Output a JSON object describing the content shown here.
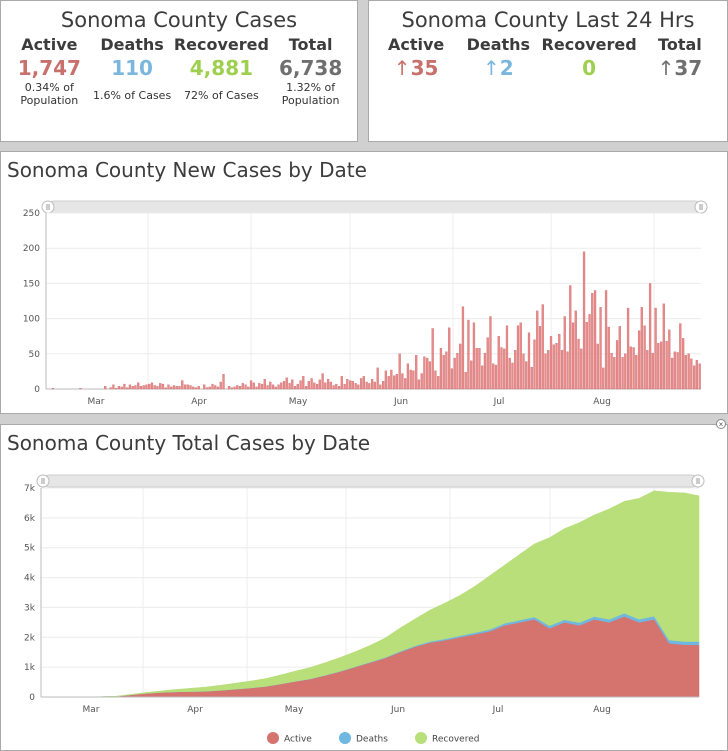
{
  "cases_panel": {
    "title": "Sonoma County Cases",
    "stats": [
      {
        "label": "Active",
        "value": "1,747",
        "note": "0.34% of Population",
        "color": "#c8706c"
      },
      {
        "label": "Deaths",
        "value": "110",
        "note": "1.6% of Cases",
        "color": "#7bb6de"
      },
      {
        "label": "Recovered",
        "value": "4,881",
        "note": "72% of Cases",
        "color": "#9fcf4e"
      },
      {
        "label": "Total",
        "value": "6,738",
        "note": "1.32% of Population",
        "color": "#6f6f6f"
      }
    ]
  },
  "last24_panel": {
    "title": "Sonoma County Last 24 Hrs",
    "stats": [
      {
        "label": "Active",
        "arrow": "↑",
        "value": "35",
        "color": "#c8706c"
      },
      {
        "label": "Deaths",
        "arrow": "↑",
        "value": "2",
        "color": "#7bb6de"
      },
      {
        "label": "Recovered",
        "arrow": "",
        "value": "0",
        "color": "#9fcf4e"
      },
      {
        "label": "Total",
        "arrow": "↑",
        "value": "37",
        "color": "#6f6f6f"
      }
    ]
  },
  "chart_data": [
    {
      "type": "bar",
      "title": "Sonoma County New Cases by Date",
      "xlabel": "",
      "ylabel": "",
      "ylim": [
        0,
        250
      ],
      "y_ticks": [
        "250",
        "200",
        "150",
        "100",
        "50",
        "0"
      ],
      "x_ticks": [
        "Mar",
        "Apr",
        "May",
        "Jun",
        "Jul",
        "Aug"
      ],
      "grid": true,
      "color": "#e8898a",
      "series": [
        {
          "values": [
            0,
            0,
            1,
            0,
            0,
            0,
            0,
            0,
            0,
            0,
            0,
            0,
            1,
            0,
            0,
            0,
            0,
            0,
            0,
            0,
            0,
            4,
            0,
            2,
            6,
            1,
            4,
            3,
            7,
            2,
            6,
            4,
            5,
            9,
            4,
            5,
            6,
            7,
            9,
            5,
            4,
            8,
            7,
            2,
            6,
            3,
            5,
            4,
            4,
            12,
            6,
            6,
            5,
            3,
            2,
            4,
            0,
            6,
            2,
            3,
            7,
            5,
            3,
            10,
            21,
            0,
            4,
            2,
            3,
            5,
            4,
            8,
            6,
            3,
            12,
            9,
            3,
            8,
            7,
            14,
            5,
            10,
            6,
            3,
            6,
            9,
            11,
            16,
            8,
            13,
            4,
            7,
            12,
            18,
            4,
            11,
            15,
            9,
            7,
            13,
            22,
            9,
            14,
            10,
            5,
            7,
            4,
            18,
            7,
            14,
            12,
            11,
            8,
            6,
            15,
            18,
            10,
            8,
            14,
            10,
            30,
            6,
            11,
            26,
            18,
            27,
            19,
            21,
            50,
            22,
            15,
            36,
            27,
            26,
            48,
            13,
            22,
            46,
            44,
            39,
            86,
            26,
            18,
            58,
            48,
            53,
            87,
            29,
            44,
            51,
            64,
            117,
            24,
            98,
            40,
            94,
            58,
            58,
            33,
            51,
            73,
            103,
            36,
            34,
            75,
            59,
            57,
            90,
            44,
            37,
            55,
            90,
            94,
            50,
            39,
            80,
            31,
            70,
            111,
            89,
            120,
            50,
            55,
            75,
            63,
            65,
            78,
            55,
            103,
            53,
            147,
            94,
            111,
            71,
            57,
            195,
            95,
            106,
            136,
            140,
            64,
            116,
            30,
            140,
            88,
            51,
            45,
            69,
            89,
            45,
            50,
            115,
            60,
            59,
            48,
            83,
            116,
            90,
            55,
            150,
            51,
            115,
            65,
            67,
            121,
            68,
            84,
            44,
            53,
            52,
            93,
            72,
            48,
            50,
            43,
            33,
            41,
            36
          ]
        }
      ]
    },
    {
      "type": "area",
      "stacked": true,
      "title": "Sonoma County Total Cases by Date",
      "xlabel": "",
      "ylabel": "",
      "ylim": [
        0,
        7000
      ],
      "y_ticks": [
        "7k",
        "6k",
        "5k",
        "4k",
        "3k",
        "2k",
        "1k",
        "0"
      ],
      "x_ticks": [
        "Mar",
        "Apr",
        "May",
        "Jun",
        "Jul",
        "Aug"
      ],
      "grid": true,
      "legend_position": "bottom",
      "series": [
        {
          "name": "Active",
          "color": "#d5736f",
          "values": [
            0,
            1,
            3,
            8,
            20,
            70,
            120,
            150,
            170,
            180,
            190,
            220,
            260,
            300,
            350,
            430,
            520,
            600,
            720,
            850,
            1000,
            1150,
            1300,
            1500,
            1680,
            1820,
            1900,
            2000,
            2100,
            2200,
            2400,
            2500,
            2600,
            2300,
            2500,
            2400,
            2600,
            2500,
            2700,
            2500,
            2600,
            1800,
            1750,
            1747
          ]
        },
        {
          "name": "Deaths",
          "color": "#6fb7e0",
          "values": [
            0,
            0,
            0,
            0,
            0,
            1,
            1,
            2,
            2,
            2,
            2,
            3,
            3,
            4,
            4,
            5,
            6,
            8,
            10,
            12,
            15,
            18,
            22,
            26,
            32,
            38,
            44,
            50,
            55,
            60,
            68,
            75,
            80,
            85,
            88,
            92,
            96,
            100,
            103,
            105,
            107,
            108,
            109,
            110
          ]
        },
        {
          "name": "Recovered",
          "color": "#b8df7a",
          "values": [
            0,
            0,
            1,
            2,
            5,
            15,
            30,
            50,
            80,
            110,
            140,
            170,
            200,
            230,
            260,
            300,
            340,
            380,
            420,
            460,
            500,
            560,
            650,
            780,
            900,
            1050,
            1200,
            1350,
            1550,
            1800,
            1950,
            2200,
            2450,
            2950,
            3050,
            3350,
            3400,
            3700,
            3750,
            4050,
            4200,
            4950,
            4980,
            4881
          ]
        }
      ]
    }
  ]
}
